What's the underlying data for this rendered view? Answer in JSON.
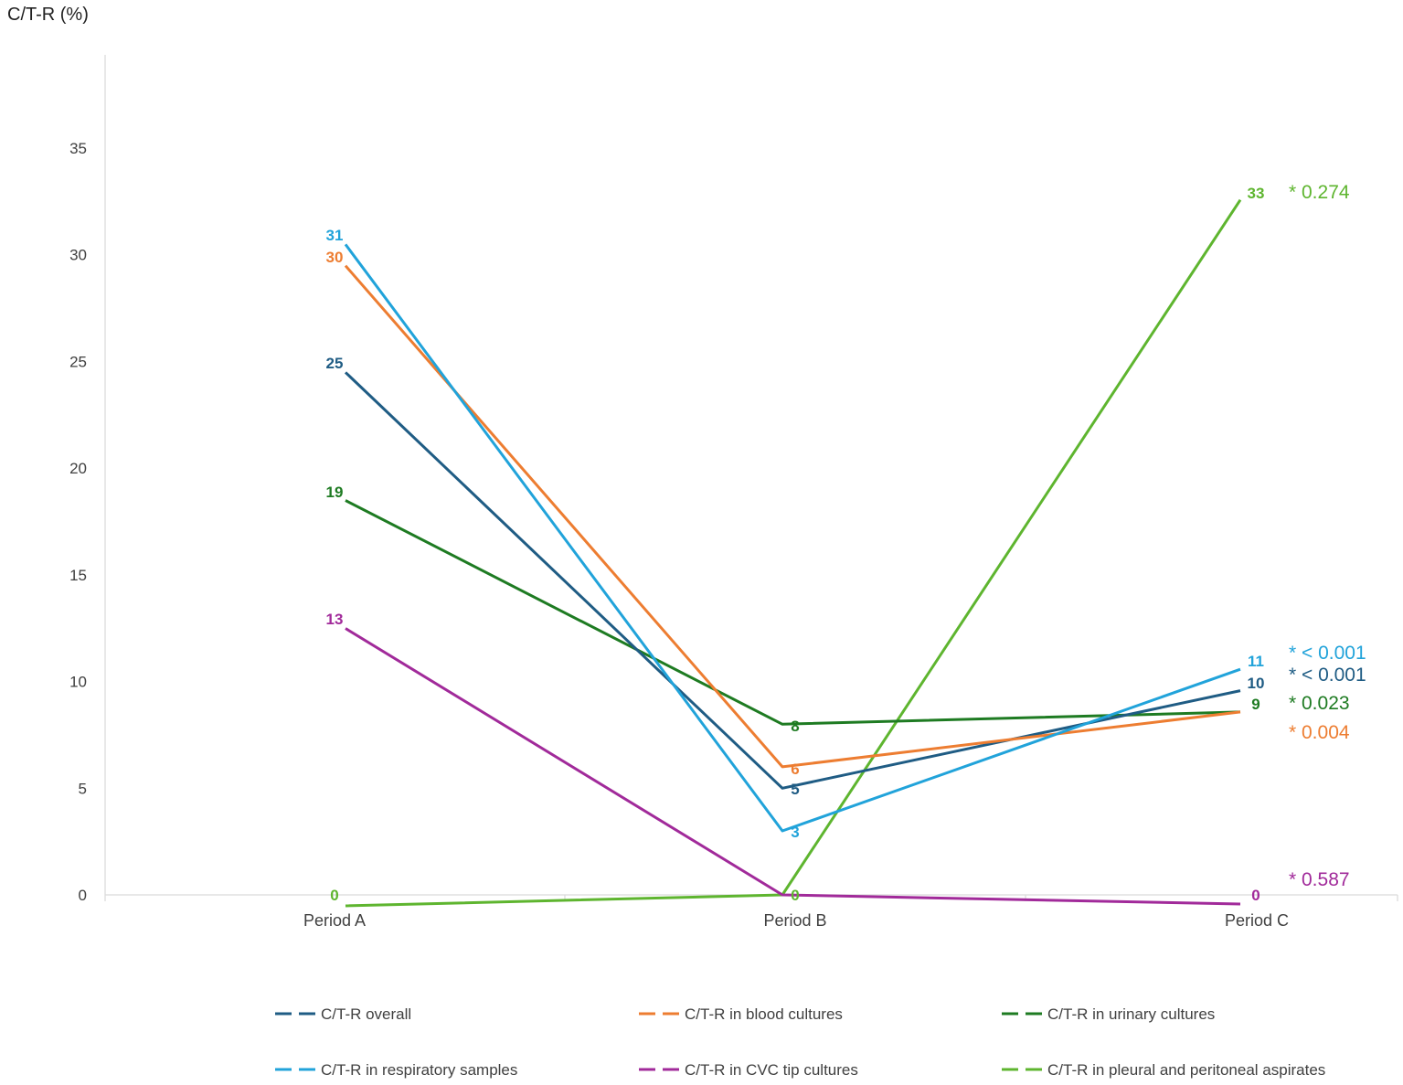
{
  "chart_data": {
    "type": "line",
    "ylabel": "C/T-R (%)",
    "ylim": [
      0,
      38
    ],
    "yticks": [
      0,
      5,
      10,
      15,
      20,
      25,
      30,
      35
    ],
    "categories": [
      "Period A",
      "Period B",
      "Period C"
    ],
    "grid": false,
    "legend_position": "bottom",
    "series": [
      {
        "name": "C/T-R overall",
        "color": "#1F5C84",
        "values": [
          25,
          5,
          10
        ],
        "labels": [
          "25",
          "5",
          "10"
        ],
        "pvalue": "* < 0.001"
      },
      {
        "name": "C/T-R in blood cultures",
        "color": "#ED7D31",
        "values": [
          30,
          6,
          9
        ],
        "labels": [
          "30",
          "6",
          ""
        ],
        "pvalue": "* 0.004"
      },
      {
        "name": "C/T-R in urinary cultures",
        "color": "#1E7B22",
        "values": [
          19,
          8,
          9
        ],
        "labels": [
          "19",
          "8",
          "9"
        ],
        "pvalue": "* 0.023"
      },
      {
        "name": "C/T-R in respiratory samples",
        "color": "#21A3DA",
        "values": [
          31,
          3,
          11
        ],
        "labels": [
          "31",
          "3",
          "11"
        ],
        "pvalue": "* < 0.001"
      },
      {
        "name": "C/T-R in CVC tip cultures",
        "color": "#A12A9A",
        "values": [
          13,
          0,
          0
        ],
        "labels": [
          "13",
          "",
          "0"
        ],
        "pvalue": "* 0.587"
      },
      {
        "name": "C/T-R in pleural and peritoneal aspirates",
        "color": "#5EB52F",
        "values": [
          0,
          0,
          33
        ],
        "labels": [
          "0",
          "0",
          "33"
        ],
        "pvalue": "* 0.274"
      }
    ]
  }
}
